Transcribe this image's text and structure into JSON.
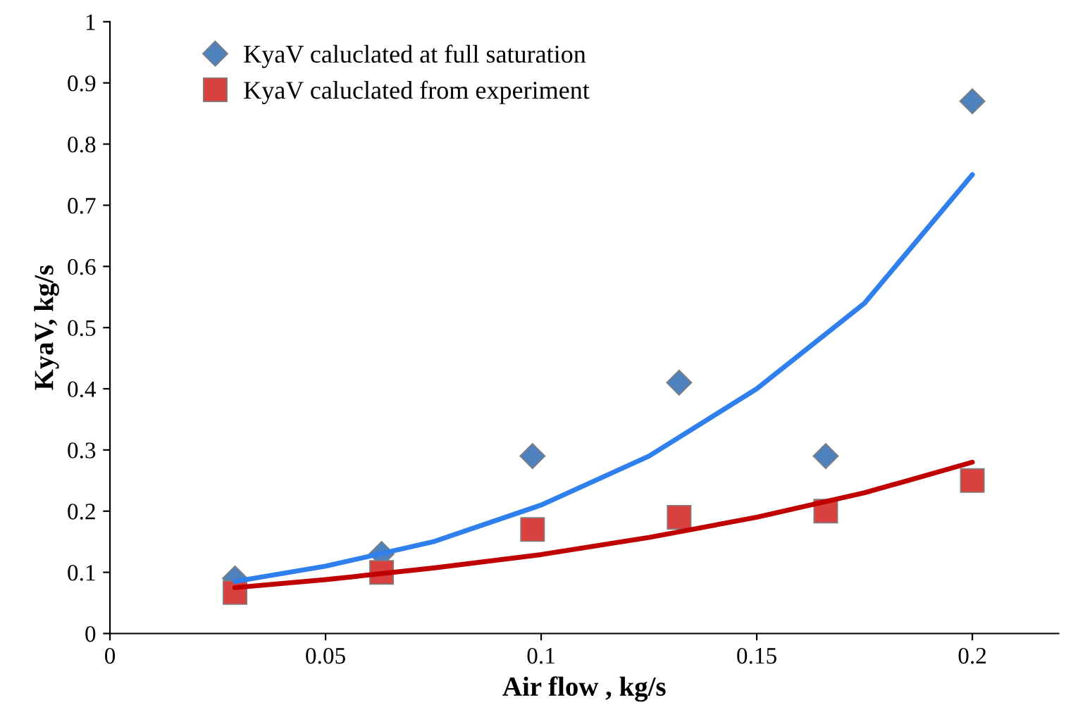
{
  "chart_data": {
    "type": "scatter",
    "xlabel": "Air flow , kg/s",
    "ylabel": "KyaV, kg/s",
    "xlim": [
      0,
      0.22
    ],
    "ylim": [
      0,
      1
    ],
    "xticks": [
      0,
      0.05,
      0.1,
      0.15,
      0.2
    ],
    "yticks": [
      0,
      0.1,
      0.2,
      0.3,
      0.4,
      0.5,
      0.6,
      0.7,
      0.8,
      0.9,
      1
    ],
    "grid": false,
    "legend": "top left",
    "series": [
      {
        "name": "KyaV caluclated at full saturation",
        "color": "#4f81bd",
        "marker": "diamond",
        "x": [
          0.029,
          0.063,
          0.098,
          0.132,
          0.166,
          0.2
        ],
        "values": [
          0.09,
          0.13,
          0.29,
          0.41,
          0.29,
          0.87
        ]
      },
      {
        "name": "KyaV caluclated from experiment",
        "color": "#d9413e",
        "marker": "square",
        "x": [
          0.029,
          0.063,
          0.098,
          0.132,
          0.166,
          0.2
        ],
        "values": [
          0.067,
          0.1,
          0.17,
          0.19,
          0.2,
          0.25
        ]
      },
      {
        "type": "line",
        "color": "#2f80ed",
        "marker": "none",
        "x": [
          0.029,
          0.05,
          0.075,
          0.1,
          0.125,
          0.15,
          0.175,
          0.2
        ],
        "values": [
          0.085,
          0.11,
          0.15,
          0.21,
          0.29,
          0.4,
          0.54,
          0.75
        ]
      },
      {
        "type": "line",
        "color": "#c00000",
        "marker": "none",
        "x": [
          0.029,
          0.05,
          0.075,
          0.1,
          0.125,
          0.15,
          0.175,
          0.2
        ],
        "values": [
          0.075,
          0.088,
          0.107,
          0.129,
          0.157,
          0.19,
          0.23,
          0.28
        ]
      }
    ]
  }
}
